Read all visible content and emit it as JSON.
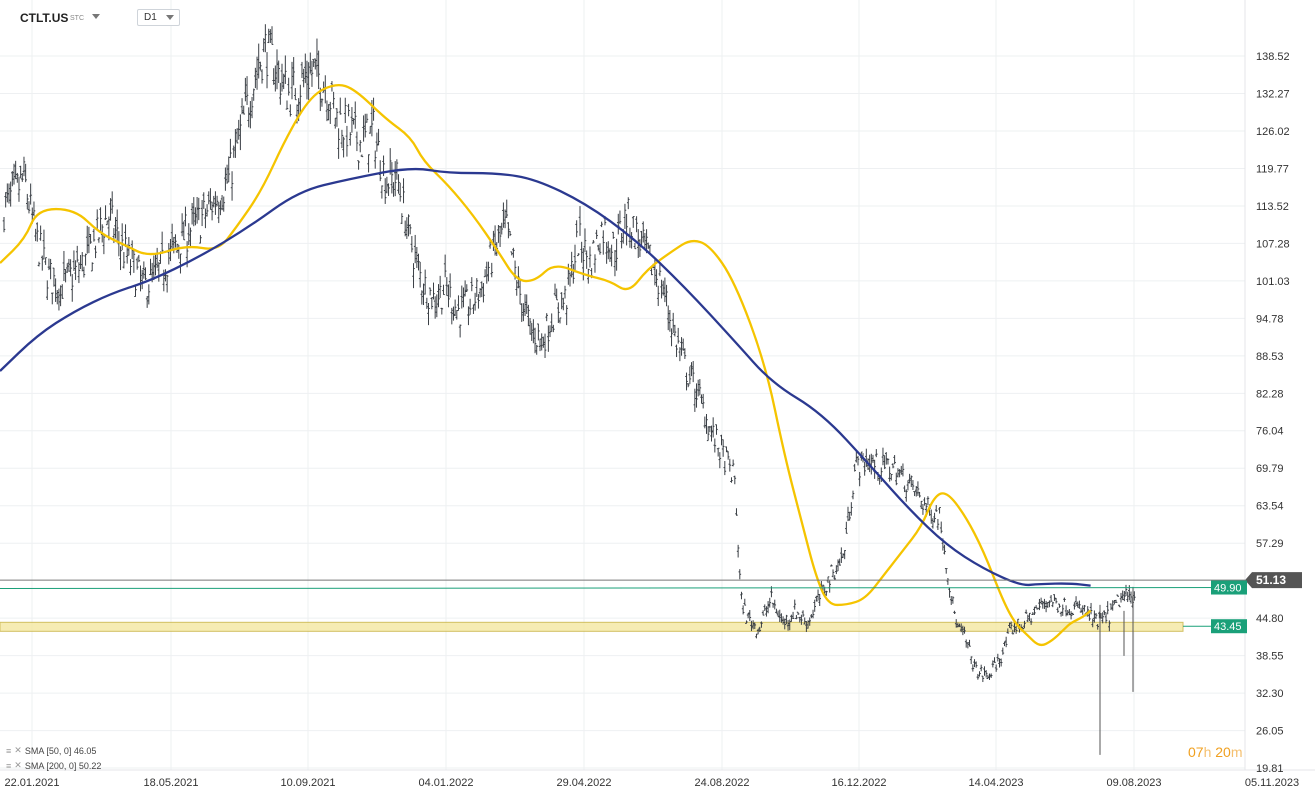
{
  "header": {
    "symbol": "CTLT.US",
    "exchange": "STC",
    "timeframe": "D1"
  },
  "legend": [
    {
      "label": "SMA [50, 0] 46.05",
      "color": "#f5c400"
    },
    {
      "label": "SMA [200, 0] 50.22",
      "color": "#2b3990"
    }
  ],
  "timer": {
    "hours": "07",
    "h_unit": "h",
    "minutes": "20",
    "m_unit": "m"
  },
  "chart_data": {
    "type": "candlestick",
    "ylabels": [
      "138.52",
      "132.27",
      "126.02",
      "119.77",
      "113.52",
      "107.28",
      "101.03",
      "94.78",
      "88.53",
      "82.28",
      "76.04",
      "69.79",
      "63.54",
      "57.29",
      "51.13",
      "44.80",
      "38.55",
      "32.30",
      "26.05",
      "19.81"
    ],
    "xlabels": [
      "22.01.2021",
      "18.05.2021",
      "10.09.2021",
      "04.01.2022",
      "29.04.2022",
      "24.08.2022",
      "16.12.2022",
      "14.04.2023",
      "09.08.2023",
      "05.11.2023"
    ],
    "ylim": [
      19.81,
      145
    ],
    "grid": true,
    "price_tags": [
      {
        "label": "51.13",
        "value": 51.13,
        "color": "#555555"
      },
      {
        "label": "49.90",
        "value": 49.9,
        "color": "#1aa079"
      },
      {
        "label": "43.45",
        "value": 43.45,
        "color": "#1aa079"
      }
    ],
    "support_zone": [
      42.6,
      44.1
    ],
    "series": [
      {
        "name": "SMA [50, 0]",
        "color": "#f5c400",
        "points": [
          [
            0,
            104
          ],
          [
            0.02,
            108
          ],
          [
            0.03,
            113
          ],
          [
            0.06,
            113
          ],
          [
            0.08,
            109
          ],
          [
            0.1,
            107
          ],
          [
            0.12,
            105
          ],
          [
            0.15,
            107
          ],
          [
            0.175,
            106
          ],
          [
            0.19,
            110
          ],
          [
            0.21,
            116
          ],
          [
            0.23,
            125
          ],
          [
            0.25,
            132
          ],
          [
            0.27,
            134
          ],
          [
            0.285,
            133
          ],
          [
            0.31,
            128
          ],
          [
            0.33,
            125
          ],
          [
            0.34,
            121
          ],
          [
            0.36,
            117
          ],
          [
            0.38,
            112
          ],
          [
            0.4,
            106
          ],
          [
            0.415,
            101
          ],
          [
            0.43,
            101
          ],
          [
            0.445,
            104
          ],
          [
            0.47,
            102
          ],
          [
            0.49,
            101
          ],
          [
            0.505,
            99
          ],
          [
            0.52,
            103
          ],
          [
            0.54,
            106
          ],
          [
            0.555,
            108
          ],
          [
            0.57,
            107
          ],
          [
            0.59,
            101
          ],
          [
            0.615,
            87
          ],
          [
            0.63,
            72
          ],
          [
            0.645,
            60
          ],
          [
            0.655,
            52
          ],
          [
            0.665,
            47
          ],
          [
            0.68,
            47
          ],
          [
            0.695,
            48
          ],
          [
            0.71,
            52
          ],
          [
            0.725,
            56
          ],
          [
            0.74,
            60
          ],
          [
            0.75,
            65
          ],
          [
            0.76,
            66
          ],
          [
            0.775,
            62
          ],
          [
            0.79,
            56
          ],
          [
            0.805,
            48
          ],
          [
            0.815,
            44
          ],
          [
            0.825,
            42
          ],
          [
            0.835,
            40
          ],
          [
            0.845,
            41
          ],
          [
            0.855,
            43
          ],
          [
            0.86,
            44
          ],
          [
            0.87,
            45
          ],
          [
            0.876,
            46.05
          ]
        ]
      },
      {
        "name": "SMA [200, 0]",
        "color": "#2b3990",
        "points": [
          [
            0,
            86
          ],
          [
            0.03,
            92
          ],
          [
            0.06,
            96
          ],
          [
            0.09,
            99
          ],
          [
            0.12,
            101
          ],
          [
            0.16,
            105
          ],
          [
            0.2,
            110
          ],
          [
            0.24,
            116
          ],
          [
            0.28,
            118
          ],
          [
            0.33,
            120
          ],
          [
            0.36,
            119
          ],
          [
            0.4,
            119
          ],
          [
            0.43,
            118
          ],
          [
            0.47,
            114
          ],
          [
            0.51,
            108
          ],
          [
            0.55,
            100
          ],
          [
            0.59,
            91
          ],
          [
            0.62,
            84
          ],
          [
            0.66,
            79
          ],
          [
            0.7,
            70
          ],
          [
            0.73,
            63
          ],
          [
            0.76,
            57
          ],
          [
            0.79,
            53
          ],
          [
            0.82,
            50.2
          ],
          [
            0.835,
            50.5
          ],
          [
            0.86,
            50.6
          ],
          [
            0.876,
            50.22
          ]
        ]
      }
    ]
  }
}
